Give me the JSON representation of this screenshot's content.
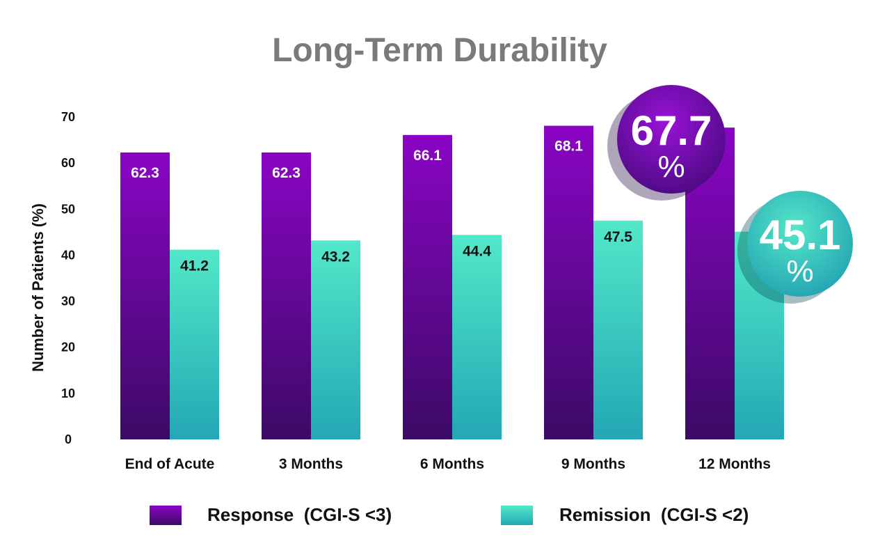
{
  "chart_data": {
    "type": "bar",
    "title": "Long-Term Durability",
    "ylabel": "Number of Patients (%)",
    "xlabel": "",
    "ylim": [
      0,
      70
    ],
    "yticks": [
      0,
      10,
      20,
      30,
      40,
      50,
      60,
      70
    ],
    "categories": [
      "End of Acute",
      "3 Months",
      "6 Months",
      "9 Months",
      "12 Months"
    ],
    "series": [
      {
        "name": "Response  (CGI-S <3)",
        "values": [
          62.3,
          62.3,
          66.1,
          68.1,
          67.7
        ],
        "labels": [
          "62.3",
          "62.3",
          "66.1",
          "68.1",
          ""
        ],
        "color_top": "#8a05c4",
        "color_bottom": "#3c0a66"
      },
      {
        "name": "Remission  (CGI-S <2)",
        "values": [
          41.2,
          43.2,
          44.4,
          47.5,
          45.1
        ],
        "labels": [
          "41.2",
          "43.2",
          "44.4",
          "47.5",
          ""
        ],
        "color_top": "#52e8c8",
        "color_bottom": "#23a7b5"
      }
    ],
    "callouts": [
      {
        "series": 0,
        "category": 4,
        "value": "67.7",
        "unit": "%"
      },
      {
        "series": 1,
        "category": 4,
        "value": "45.1",
        "unit": "%"
      }
    ],
    "title_color": "#7a7a7a"
  }
}
